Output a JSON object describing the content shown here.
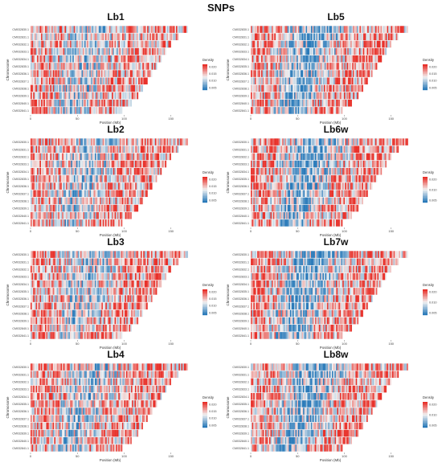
{
  "title": "SNPs",
  "colors": {
    "low": "#2b7bba",
    "mid": "#f2f2f2",
    "high": "#e8312a"
  },
  "chart_data": [
    {
      "type": "heatmap",
      "title": "Lb1",
      "xlabel": "Position (Mb)",
      "ylabel": "Chromosome",
      "x_ticks": [
        "0",
        "50",
        "100",
        "150"
      ],
      "xlim": [
        0,
        170
      ],
      "rows": [
        {
          "name": "CM032830.1",
          "length": 168
        },
        {
          "name": "CM032831.1",
          "length": 158
        },
        {
          "name": "CM032832.1",
          "length": 150
        },
        {
          "name": "CM032833.1",
          "length": 145
        },
        {
          "name": "CM032834.1",
          "length": 140
        },
        {
          "name": "CM032835.1",
          "length": 135
        },
        {
          "name": "CM032836.1",
          "length": 130
        },
        {
          "name": "CM032837.1",
          "length": 125
        },
        {
          "name": "CM032838.1",
          "length": 120
        },
        {
          "name": "CM032839.1",
          "length": 115
        },
        {
          "name": "CM032840.1",
          "length": 108
        },
        {
          "name": "CM032841.1",
          "length": 98
        }
      ],
      "legend_title": "Density",
      "legend_ticks": [
        "0.020",
        "0.015",
        "0.010",
        "0.005"
      ]
    },
    {
      "type": "heatmap",
      "title": "Lb5",
      "xlabel": "Position (Mb)",
      "ylabel": "Chromosome",
      "x_ticks": [
        "0",
        "50",
        "100",
        "150"
      ],
      "xlim": [
        0,
        170
      ],
      "rows": [
        {
          "name": "CM032830.1",
          "length": 168
        },
        {
          "name": "CM032831.1",
          "length": 158
        },
        {
          "name": "CM032832.1",
          "length": 150
        },
        {
          "name": "CM032833.1",
          "length": 145
        },
        {
          "name": "CM032834.1",
          "length": 140
        },
        {
          "name": "CM032835.1",
          "length": 135
        },
        {
          "name": "CM032836.1",
          "length": 130
        },
        {
          "name": "CM032837.1",
          "length": 125
        },
        {
          "name": "CM032838.1",
          "length": 120
        },
        {
          "name": "CM032839.1",
          "length": 115
        },
        {
          "name": "CM032840.1",
          "length": 108
        },
        {
          "name": "CM032841.1",
          "length": 98
        }
      ],
      "legend_title": "Density",
      "legend_ticks": [
        "0.020",
        "0.015",
        "0.010",
        "0.005"
      ]
    },
    {
      "type": "heatmap",
      "title": "Lb2",
      "xlabel": "Position (Mb)",
      "ylabel": "Chromosome",
      "x_ticks": [
        "0",
        "50",
        "100",
        "150"
      ],
      "xlim": [
        0,
        170
      ],
      "rows": [
        {
          "name": "CM032830.1",
          "length": 168
        },
        {
          "name": "CM032831.1",
          "length": 158
        },
        {
          "name": "CM032832.1",
          "length": 150
        },
        {
          "name": "CM032833.1",
          "length": 145
        },
        {
          "name": "CM032834.1",
          "length": 140
        },
        {
          "name": "CM032835.1",
          "length": 135
        },
        {
          "name": "CM032836.1",
          "length": 130
        },
        {
          "name": "CM032837.1",
          "length": 125
        },
        {
          "name": "CM032838.1",
          "length": 120
        },
        {
          "name": "CM032839.1",
          "length": 115
        },
        {
          "name": "CM032840.1",
          "length": 108
        },
        {
          "name": "CM032841.1",
          "length": 98
        }
      ],
      "legend_title": "Density",
      "legend_ticks": [
        "0.020",
        "0.015",
        "0.010",
        "0.005"
      ]
    },
    {
      "type": "heatmap",
      "title": "Lb6w",
      "xlabel": "Position (Mb)",
      "ylabel": "Chromosome",
      "x_ticks": [
        "0",
        "50",
        "100",
        "150"
      ],
      "xlim": [
        0,
        170
      ],
      "rows": [
        {
          "name": "CM032830.1",
          "length": 168
        },
        {
          "name": "CM032831.1",
          "length": 158
        },
        {
          "name": "CM032832.1",
          "length": 150
        },
        {
          "name": "CM032833.1",
          "length": 145
        },
        {
          "name": "CM032834.1",
          "length": 140
        },
        {
          "name": "CM032835.1",
          "length": 135
        },
        {
          "name": "CM032836.1",
          "length": 130
        },
        {
          "name": "CM032837.1",
          "length": 125
        },
        {
          "name": "CM032838.1",
          "length": 120
        },
        {
          "name": "CM032839.1",
          "length": 115
        },
        {
          "name": "CM032840.1",
          "length": 108
        },
        {
          "name": "CM032841.1",
          "length": 98
        }
      ],
      "legend_title": "Density",
      "legend_ticks": [
        "0.020",
        "0.010",
        "0.005"
      ]
    },
    {
      "type": "heatmap",
      "title": "Lb3",
      "xlabel": "Position (Mb)",
      "ylabel": "Chromosome",
      "x_ticks": [
        "0",
        "50",
        "100",
        "150"
      ],
      "xlim": [
        0,
        170
      ],
      "rows": [
        {
          "name": "CM032830.1",
          "length": 168
        },
        {
          "name": "CM032831.1",
          "length": 158
        },
        {
          "name": "CM032832.1",
          "length": 150
        },
        {
          "name": "CM032833.1",
          "length": 145
        },
        {
          "name": "CM032834.1",
          "length": 140
        },
        {
          "name": "CM032835.1",
          "length": 135
        },
        {
          "name": "CM032836.1",
          "length": 130
        },
        {
          "name": "CM032837.1",
          "length": 125
        },
        {
          "name": "CM032838.1",
          "length": 120
        },
        {
          "name": "CM032839.1",
          "length": 115
        },
        {
          "name": "CM032840.1",
          "length": 108
        },
        {
          "name": "CM032841.1",
          "length": 98
        }
      ],
      "legend_title": "Density",
      "legend_ticks": [
        "0.020",
        "0.015",
        "0.010",
        "0.005"
      ]
    },
    {
      "type": "heatmap",
      "title": "Lb7w",
      "xlabel": "Position (Mb)",
      "ylabel": "Chromosome",
      "x_ticks": [
        "0",
        "50",
        "100",
        "150"
      ],
      "xlim": [
        0,
        170
      ],
      "rows": [
        {
          "name": "CM032830.1",
          "length": 168
        },
        {
          "name": "CM032831.1",
          "length": 158
        },
        {
          "name": "CM032832.1",
          "length": 150
        },
        {
          "name": "CM032833.1",
          "length": 145
        },
        {
          "name": "CM032834.1",
          "length": 140
        },
        {
          "name": "CM032835.1",
          "length": 135
        },
        {
          "name": "CM032836.1",
          "length": 130
        },
        {
          "name": "CM032837.1",
          "length": 125
        },
        {
          "name": "CM032838.1",
          "length": 120
        },
        {
          "name": "CM032839.1",
          "length": 115
        },
        {
          "name": "CM032840.1",
          "length": 108
        },
        {
          "name": "CM032841.1",
          "length": 98
        }
      ],
      "legend_title": "Density",
      "legend_ticks": [
        "0.020",
        "0.010",
        "0.005"
      ]
    },
    {
      "type": "heatmap",
      "title": "Lb4",
      "xlabel": "Position (Mb)",
      "ylabel": "Chromosome",
      "x_ticks": [
        "0",
        "50",
        "100",
        "150"
      ],
      "xlim": [
        0,
        170
      ],
      "rows": [
        {
          "name": "CM032830.1",
          "length": 168
        },
        {
          "name": "CM032831.1",
          "length": 158
        },
        {
          "name": "CM032832.1",
          "length": 150
        },
        {
          "name": "CM032833.1",
          "length": 145
        },
        {
          "name": "CM032834.1",
          "length": 140
        },
        {
          "name": "CM032835.1",
          "length": 135
        },
        {
          "name": "CM032836.1",
          "length": 130
        },
        {
          "name": "CM032837.1",
          "length": 125
        },
        {
          "name": "CM032838.1",
          "length": 120
        },
        {
          "name": "CM032839.1",
          "length": 115
        },
        {
          "name": "CM032840.1",
          "length": 108
        },
        {
          "name": "CM032841.1",
          "length": 98
        }
      ],
      "legend_title": "Density",
      "legend_ticks": [
        "0.020",
        "0.015",
        "0.010",
        "0.005"
      ]
    },
    {
      "type": "heatmap",
      "title": "Lb8w",
      "xlabel": "Position (Mb)",
      "ylabel": "Chromosome",
      "x_ticks": [
        "0",
        "50",
        "100",
        "150"
      ],
      "xlim": [
        0,
        170
      ],
      "rows": [
        {
          "name": "CM032830.1",
          "length": 168
        },
        {
          "name": "CM032831.1",
          "length": 158
        },
        {
          "name": "CM032832.1",
          "length": 150
        },
        {
          "name": "CM032833.1",
          "length": 145
        },
        {
          "name": "CM032834.1",
          "length": 140
        },
        {
          "name": "CM032835.1",
          "length": 135
        },
        {
          "name": "CM032836.1",
          "length": 130
        },
        {
          "name": "CM032837.1",
          "length": 125
        },
        {
          "name": "CM032838.1",
          "length": 120
        },
        {
          "name": "CM032839.1",
          "length": 115
        },
        {
          "name": "CM032840.1",
          "length": 108
        },
        {
          "name": "CM032841.1",
          "length": 98
        }
      ],
      "legend_title": "Density",
      "legend_ticks": [
        "0.020",
        "0.010",
        "0.005"
      ]
    }
  ]
}
